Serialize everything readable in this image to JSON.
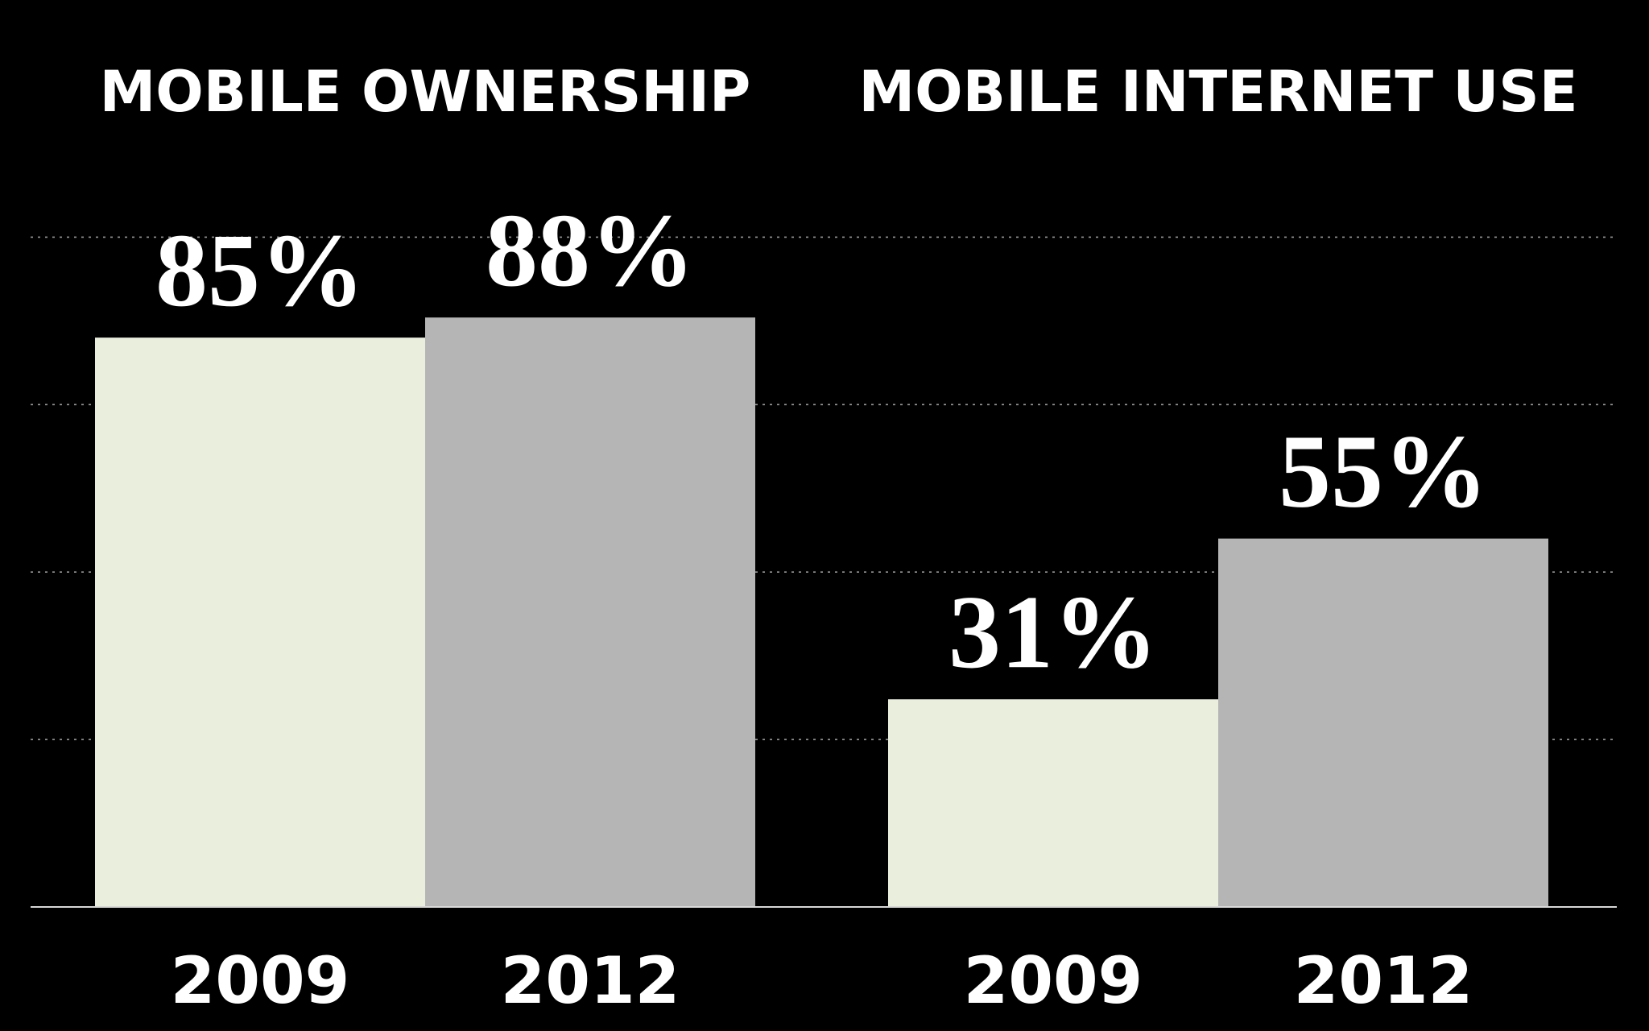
{
  "chart_data": {
    "type": "bar",
    "ylim": [
      0,
      100
    ],
    "grid": true,
    "colors": {
      "background": "#000000",
      "bar_2009": "#eaeedc",
      "bar_2012": "#b5b5b5",
      "text": "#ffffff"
    },
    "groups": [
      {
        "title": "MOBILE OWNERSHIP",
        "categories": [
          "2009",
          "2012"
        ],
        "values": [
          85,
          88
        ],
        "labels": [
          "85%",
          "88%"
        ]
      },
      {
        "title": "MOBILE INTERNET USE",
        "categories": [
          "2009",
          "2012"
        ],
        "values": [
          31,
          55
        ],
        "labels": [
          "31%",
          "55%"
        ]
      }
    ]
  }
}
